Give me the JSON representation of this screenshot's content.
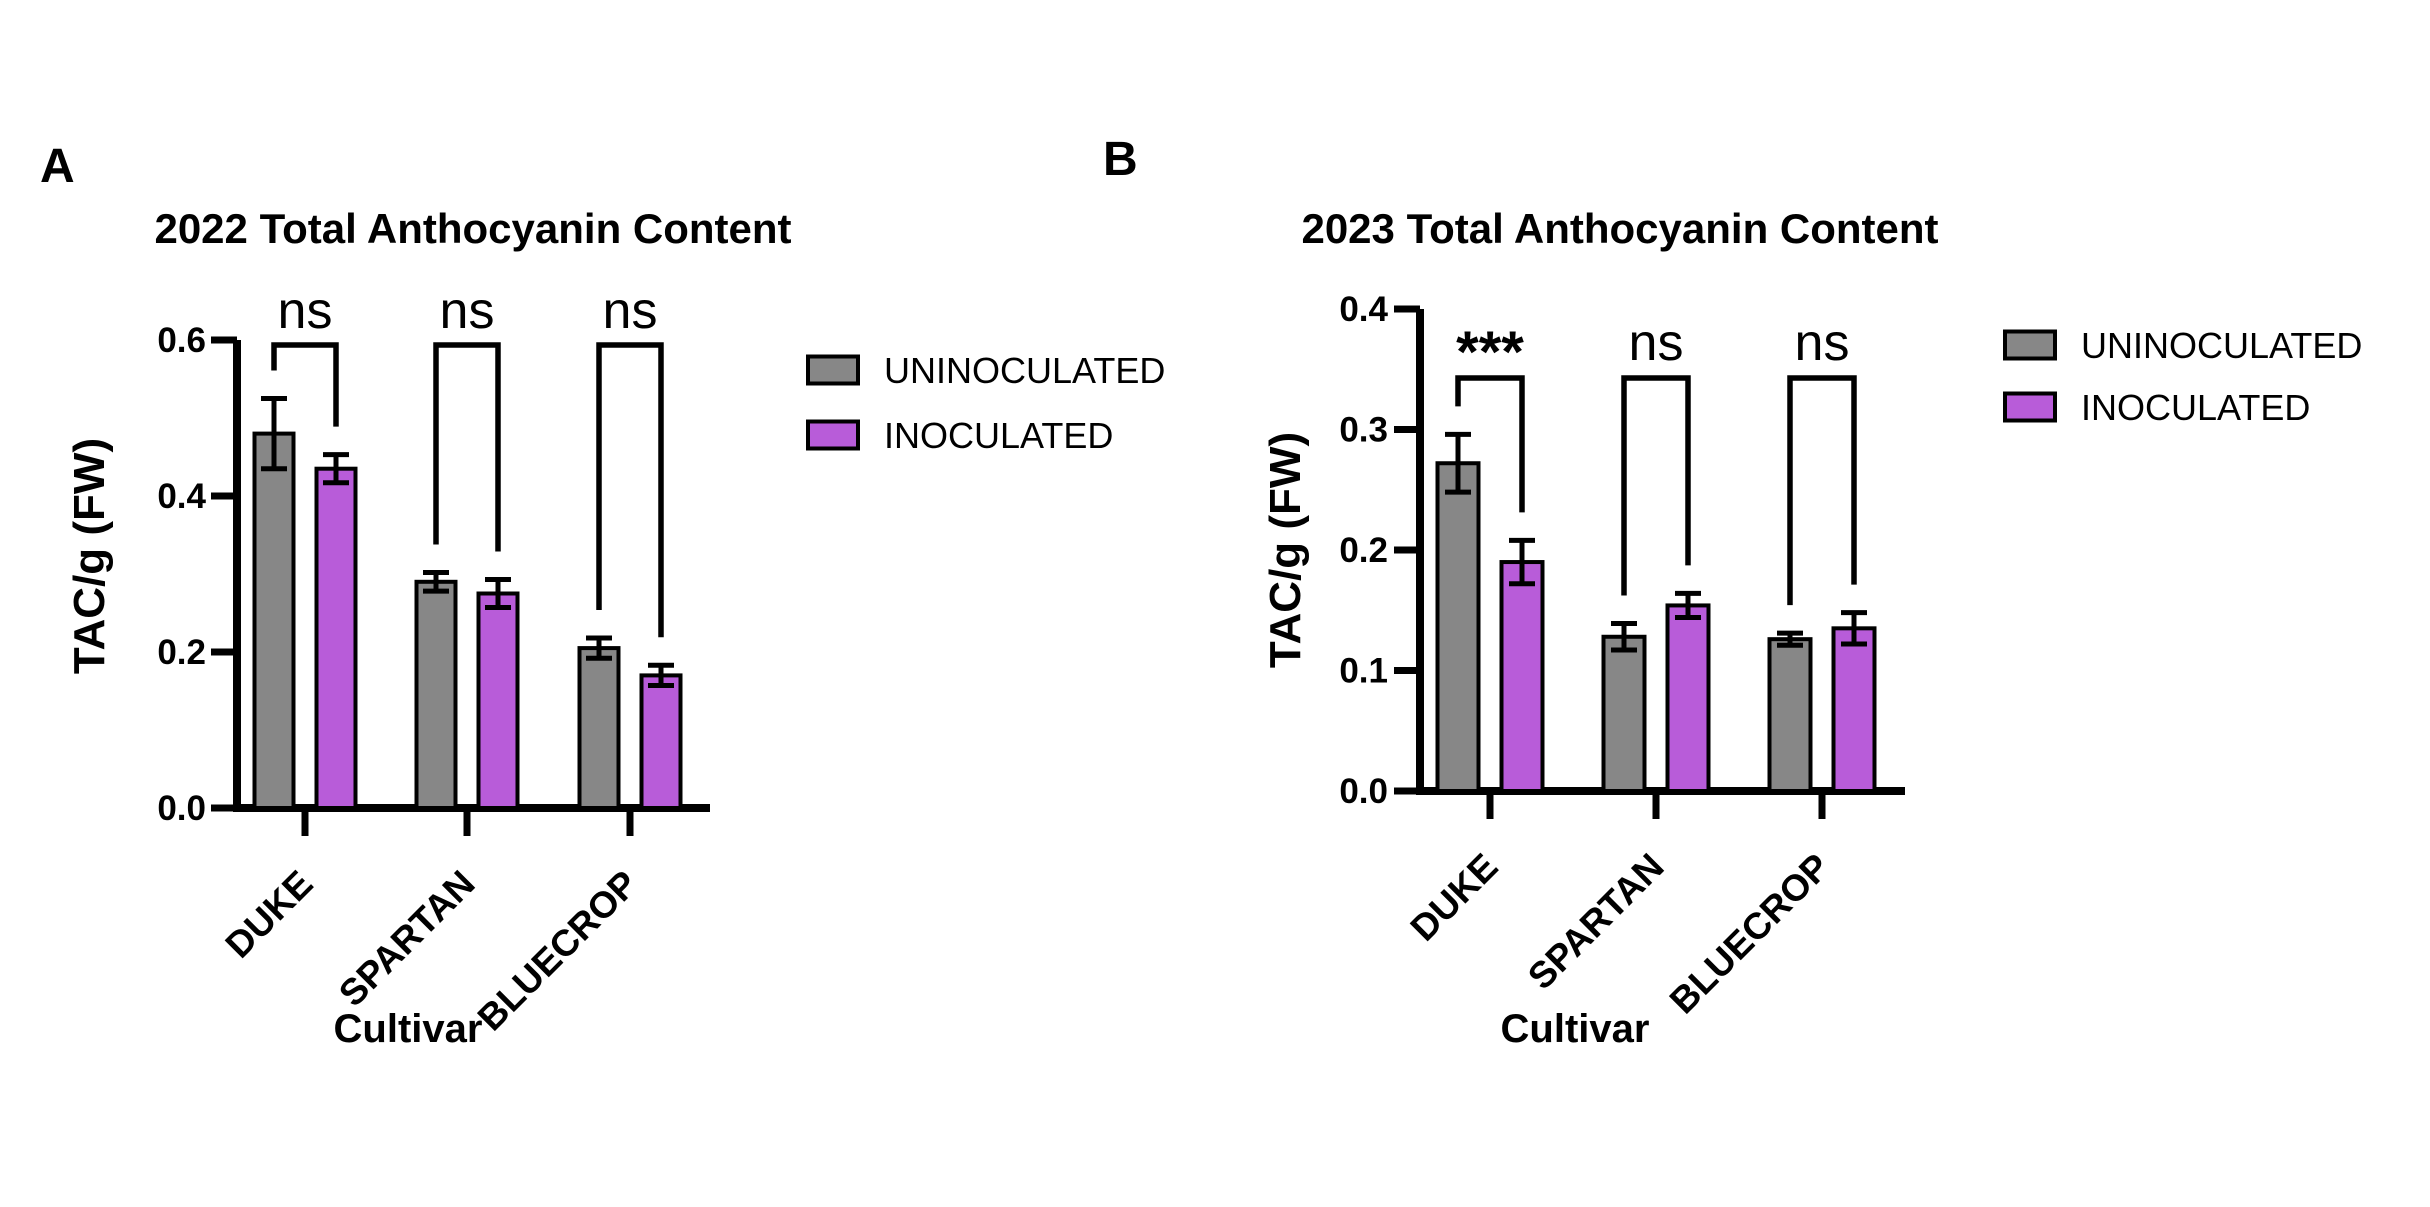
{
  "figure": {
    "background": "#ffffff",
    "panel_labels": [
      "A",
      "B"
    ],
    "legend": {
      "items": [
        {
          "label": "UNINOCULATED",
          "color": "#878787",
          "swatch": "gray-filled-rect"
        },
        {
          "label": "INOCULATED",
          "color": "#B85CD9",
          "swatch": "purple-filled-rect"
        }
      ]
    },
    "colors": {
      "uninoculated": "#878787",
      "inoculated": "#B85CD9",
      "axis": "#000000",
      "text": "#000000",
      "background": "#ffffff"
    }
  },
  "chart_data": [
    {
      "type": "bar",
      "panel": "A",
      "title": "2022 Total Anthocyanin Content",
      "xlabel": "Cultivar",
      "ylabel": "TAC/g (FW)",
      "ylim": [
        0,
        0.6
      ],
      "yticks": [
        0,
        0.2,
        0.4,
        0.6
      ],
      "ytick_labels": [
        "0.0",
        "0.2",
        "0.4",
        "0.6"
      ],
      "categories": [
        "DUKE",
        "SPARTAN",
        "BLUECROP"
      ],
      "series": [
        {
          "name": "UNINOCULATED",
          "color": "#878787",
          "values": [
            0.48,
            0.29,
            0.205
          ],
          "errors": [
            0.045,
            0.012,
            0.013
          ]
        },
        {
          "name": "INOCULATED",
          "color": "#B85CD9",
          "values": [
            0.435,
            0.275,
            0.17
          ],
          "errors": [
            0.018,
            0.018,
            0.013
          ]
        }
      ],
      "significance": [
        "ns",
        "ns",
        "ns"
      ],
      "error_bars": "plus-minus-sd-with-caps",
      "grid": false,
      "legend_position": "right-of-plot"
    },
    {
      "type": "bar",
      "panel": "B",
      "title": "2023 Total Anthocyanin Content",
      "xlabel": "Cultivar",
      "ylabel": "TAC/g (FW)",
      "ylim": [
        0,
        0.4
      ],
      "yticks": [
        0,
        0.1,
        0.2,
        0.3,
        0.4
      ],
      "ytick_labels": [
        "0.0",
        "0.1",
        "0.2",
        "0.3",
        "0.4"
      ],
      "categories": [
        "DUKE",
        "SPARTAN",
        "BLUECROP"
      ],
      "series": [
        {
          "name": "UNINOCULATED",
          "color": "#878787",
          "values": [
            0.272,
            0.128,
            0.126
          ],
          "errors": [
            0.024,
            0.011,
            0.005
          ]
        },
        {
          "name": "INOCULATED",
          "color": "#B85CD9",
          "values": [
            0.19,
            0.154,
            0.135
          ],
          "errors": [
            0.018,
            0.01,
            0.013
          ]
        }
      ],
      "significance": [
        "***",
        "ns",
        "ns"
      ],
      "error_bars": "plus-minus-sd-with-caps",
      "grid": false,
      "legend_position": "right-of-plot"
    }
  ]
}
